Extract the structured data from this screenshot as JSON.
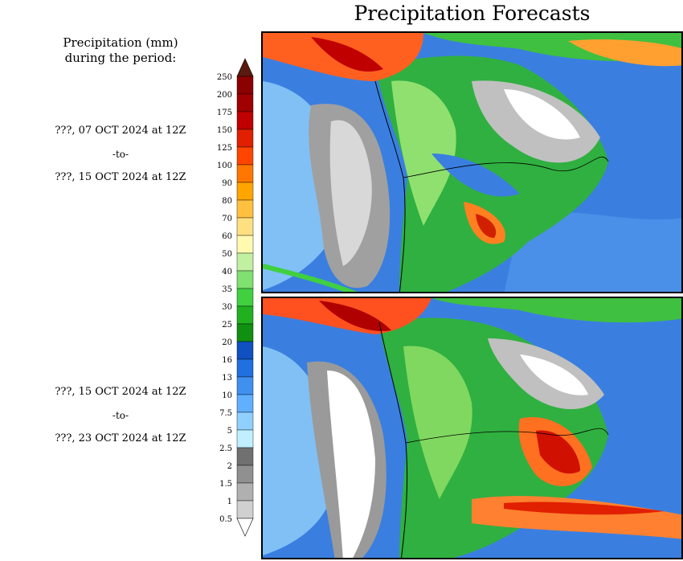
{
  "title": "Precipitation Forecasts",
  "legend_heading": [
    "Precipitation (mm)",
    "during the period:"
  ],
  "periods": [
    {
      "start": "???, 07 OCT 2024 at 12Z",
      "sep": "-to-",
      "end": "???, 15 OCT 2024 at 12Z"
    },
    {
      "start": "???, 15 OCT 2024 at 12Z",
      "sep": "-to-",
      "end": "???, 23 OCT 2024 at 12Z"
    }
  ],
  "colorbar": {
    "labels": [
      "250",
      "200",
      "175",
      "150",
      "125",
      "100",
      "90",
      "80",
      "70",
      "60",
      "50",
      "40",
      "35",
      "30",
      "25",
      "20",
      "16",
      "13",
      "10",
      "7.5",
      "5",
      "2.5",
      "2",
      "1.5",
      "1",
      "0.5"
    ],
    "colors": [
      "#5a1a10",
      "#8b0000",
      "#a00000",
      "#c00000",
      "#e02000",
      "#ff4500",
      "#ff7700",
      "#ffa500",
      "#ffc040",
      "#ffe080",
      "#fffab0",
      "#c0f0a0",
      "#80e070",
      "#40d040",
      "#20b020",
      "#109010",
      "#1050c0",
      "#2070e0",
      "#4090f0",
      "#60b0ff",
      "#90d0ff",
      "#c0f0ff",
      "#707070",
      "#909090",
      "#b0b0b0",
      "#d0d0d0",
      "#ffffff"
    ]
  }
}
